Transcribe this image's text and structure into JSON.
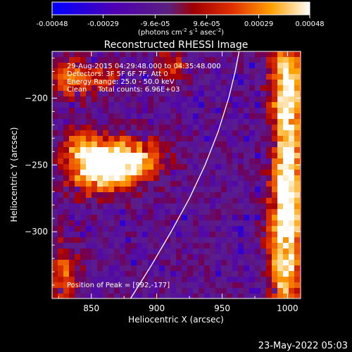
{
  "colorbar": {
    "tick_labels": [
      "-0.00048",
      "-0.00029",
      "-9.6e-05",
      "9.6e-05",
      "0.00029",
      "0.00048"
    ],
    "units_main": "(photons cm",
    "units_sup1": "-2",
    "units_mid1": " s",
    "units_sup2": "-1",
    "units_mid2": " asec",
    "units_sup3": "-2",
    "units_end": ")",
    "range": [
      -0.00048,
      0.00048
    ]
  },
  "chart_data": {
    "type": "heatmap",
    "title": "Reconstructed RHESSI Image",
    "xlabel": "Heliocentric X (arcsec)",
    "ylabel": "Heliocentric Y (arcsec)",
    "xlim": [
      820,
      1010
    ],
    "ylim": [
      -350,
      -165
    ],
    "xticks": [
      850,
      900,
      950,
      1000
    ],
    "xtick_labels": [
      "850",
      "900",
      "950",
      "1000"
    ],
    "yticks": [
      -200,
      -250,
      -300
    ],
    "ytick_labels": [
      "−200",
      "−250",
      "−300"
    ],
    "solar_limb": [
      [
        880,
        -350
      ],
      [
        896,
        -325
      ],
      [
        911,
        -300
      ],
      [
        925,
        -275
      ],
      [
        937,
        -250
      ],
      [
        947,
        -225
      ],
      [
        955,
        -200
      ],
      [
        960,
        -180
      ],
      [
        963,
        -165
      ]
    ],
    "annotations": [
      "29-Aug-2015 04:29:48.000 to 04:35:48.000",
      "Detectors: 3F 5F 6F 7F, Att 0",
      "Energy Range: 25.0 - 50.0 keV",
      "Clean     Total counts: 6.96E+03"
    ],
    "peak_label": "Position of Peak = [992,-177]",
    "peak": [
      992,
      -177
    ],
    "sources": [
      {
        "x": 855,
        "y": -253,
        "sx": 17,
        "sy": 13,
        "a": 1.0
      },
      {
        "x": 880,
        "y": -246,
        "sx": 16,
        "sy": 11,
        "a": 0.9
      },
      {
        "x": 842,
        "y": -235,
        "sx": 9,
        "sy": 9,
        "a": 0.5
      },
      {
        "x": 1000,
        "y": -192,
        "sx": 9,
        "sy": 28,
        "a": 1.0
      },
      {
        "x": 1000,
        "y": -260,
        "sx": 8,
        "sy": 30,
        "a": 0.85
      },
      {
        "x": 998,
        "y": -320,
        "sx": 9,
        "sy": 35,
        "a": 0.9
      },
      {
        "x": 835,
        "y": -185,
        "sx": 12,
        "sy": 11,
        "a": 0.55
      },
      {
        "x": 828,
        "y": -335,
        "sx": 9,
        "sy": 20,
        "a": 0.55
      },
      {
        "x": 912,
        "y": -175,
        "sx": 10,
        "sy": 8,
        "a": 0.45
      },
      {
        "x": 860,
        "y": -185,
        "sx": 8,
        "sy": 7,
        "a": 0.35
      }
    ]
  },
  "footer": {
    "date": "23-May-2022 05:03"
  }
}
